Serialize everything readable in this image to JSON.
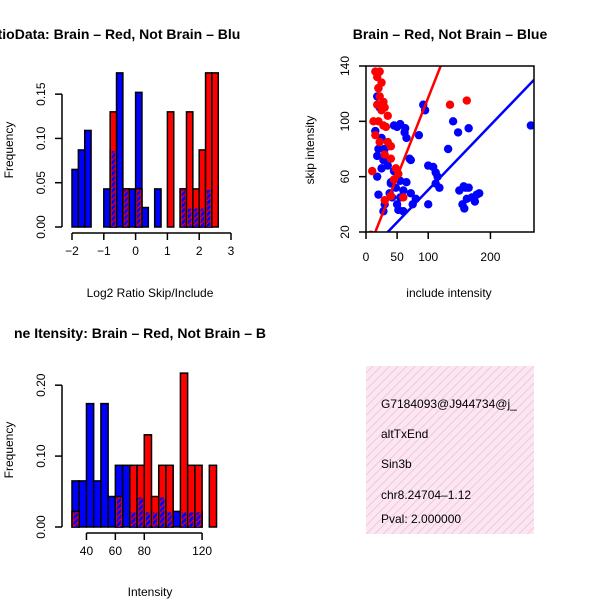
{
  "chart_data": [
    {
      "type": "bar",
      "title": "RatioData: Brain – Red, Not Brain – Blu",
      "xlabel": "Log2 Ratio Skip/Include",
      "ylabel": "Frequency",
      "xlim": [
        -2,
        3
      ],
      "ylim": [
        0,
        0.175
      ],
      "xticks": [
        "−2",
        "−1",
        "0",
        "1",
        "2",
        "3"
      ],
      "yticks": [
        "0.00",
        "0.05",
        "0.10",
        "0.15"
      ],
      "bin_width": 0.2,
      "series": [
        {
          "name": "Not Brain",
          "color": "#0000ff",
          "bins": [
            {
              "x0": -2.0,
              "v": 0.065
            },
            {
              "x0": -1.8,
              "v": 0.087
            },
            {
              "x0": -1.6,
              "v": 0.109
            },
            {
              "x0": -1.0,
              "v": 0.043
            },
            {
              "x0": -0.8,
              "v": 0.087
            },
            {
              "x0": -0.6,
              "v": 0.174
            },
            {
              "x0": -0.4,
              "v": 0.043
            },
            {
              "x0": -0.2,
              "v": 0.043
            },
            {
              "x0": 0.0,
              "v": 0.152
            },
            {
              "x0": 0.2,
              "v": 0.022
            },
            {
              "x0": 0.6,
              "v": 0.043
            },
            {
              "x0": 1.4,
              "v": 0.043
            },
            {
              "x0": 1.6,
              "v": 0.022
            },
            {
              "x0": 1.8,
              "v": 0.022
            },
            {
              "x0": 2.0,
              "v": 0.022
            },
            {
              "x0": 2.2,
              "v": 0.043
            }
          ]
        },
        {
          "name": "Brain",
          "color": "#ff0000",
          "bins": [
            {
              "x0": -0.8,
              "v": 0.13
            },
            {
              "x0": -0.4,
              "v": 0.043
            },
            {
              "x0": 0.0,
              "v": 0.043
            },
            {
              "x0": 1.0,
              "v": 0.13
            },
            {
              "x0": 1.4,
              "v": 0.043
            },
            {
              "x0": 1.6,
              "v": 0.13
            },
            {
              "x0": 1.8,
              "v": 0.043
            },
            {
              "x0": 2.0,
              "v": 0.087
            },
            {
              "x0": 2.2,
              "v": 0.174
            },
            {
              "x0": 2.4,
              "v": 0.174
            }
          ]
        }
      ]
    },
    {
      "type": "scatter",
      "title": "Brain – Red, Not Brain – Blue",
      "xlabel": "include intensity",
      "ylabel": "skip intensity",
      "xlim": [
        0,
        270
      ],
      "ylim": [
        20,
        140
      ],
      "xticks": [
        {
          "v": 0,
          "label": "0"
        },
        {
          "v": 50,
          "label": "50"
        },
        {
          "v": 100,
          "label": "100"
        },
        {
          "v": 200,
          "label": "200"
        }
      ],
      "yticks": [
        {
          "v": 20,
          "label": "20"
        },
        {
          "v": 60,
          "label": "60"
        },
        {
          "v": 100,
          "label": "100"
        },
        {
          "v": 140,
          "label": "140"
        }
      ],
      "series": [
        {
          "name": "Not Brain",
          "color": "#0000ff",
          "line": [
            [
              35,
              20
            ],
            [
              270,
              130
            ]
          ],
          "points": [
            [
              20,
              124
            ],
            [
              18,
              118
            ],
            [
              22,
              110
            ],
            [
              15,
              93
            ],
            [
              25,
              88
            ],
            [
              20,
              80
            ],
            [
              30,
              80
            ],
            [
              18,
              75
            ],
            [
              28,
              72
            ],
            [
              35,
              68
            ],
            [
              25,
              66
            ],
            [
              45,
              64
            ],
            [
              40,
              55
            ],
            [
              55,
              57
            ],
            [
              48,
              52
            ],
            [
              60,
              50
            ],
            [
              65,
              56
            ],
            [
              38,
              48
            ],
            [
              42,
              45
            ],
            [
              55,
              45
            ],
            [
              72,
              48
            ],
            [
              80,
              44
            ],
            [
              18,
              60
            ],
            [
              20,
              47
            ],
            [
              30,
              40
            ],
            [
              50,
              40
            ],
            [
              52,
              36
            ],
            [
              60,
              35
            ],
            [
              28,
              35
            ],
            [
              95,
              108
            ],
            [
              92,
              112
            ],
            [
              85,
              90
            ],
            [
              100,
              68
            ],
            [
              108,
              67
            ],
            [
              112,
              63
            ],
            [
              115,
              60
            ],
            [
              112,
              55
            ],
            [
              118,
              52
            ],
            [
              132,
              80
            ],
            [
              140,
              100
            ],
            [
              148,
              92
            ],
            [
              165,
              95
            ],
            [
              150,
              50
            ],
            [
              157,
              53
            ],
            [
              160,
              52
            ],
            [
              165,
              52
            ],
            [
              170,
              45
            ],
            [
              162,
              44
            ],
            [
              155,
              40
            ],
            [
              158,
              37
            ],
            [
              175,
              42
            ],
            [
              178,
              47
            ],
            [
              182,
              48
            ],
            [
              100,
              40
            ],
            [
              75,
              40
            ],
            [
              62,
              92
            ],
            [
              55,
              98
            ],
            [
              63,
              95
            ],
            [
              40,
              56
            ],
            [
              265,
              97
            ],
            [
              45,
              97
            ],
            [
              50,
              96
            ],
            [
              65,
              88
            ],
            [
              70,
              73
            ],
            [
              72,
              72
            ]
          ]
        },
        {
          "name": "Brain",
          "color": "#ff0000",
          "line": [
            [
              15,
              20
            ],
            [
              120,
              140
            ]
          ],
          "points": [
            [
              15,
              136
            ],
            [
              18,
              132
            ],
            [
              22,
              136
            ],
            [
              20,
              124
            ],
            [
              25,
              128
            ],
            [
              22,
              118
            ],
            [
              28,
              114
            ],
            [
              18,
              112
            ],
            [
              30,
              110
            ],
            [
              25,
              108
            ],
            [
              35,
              104
            ],
            [
              12,
              100
            ],
            [
              20,
              100
            ],
            [
              28,
              97
            ],
            [
              32,
              96
            ],
            [
              15,
              90
            ],
            [
              22,
              85
            ],
            [
              35,
              85
            ],
            [
              40,
              82
            ],
            [
              30,
              76
            ],
            [
              40,
              73
            ],
            [
              48,
              66
            ],
            [
              52,
              62
            ],
            [
              45,
              58
            ],
            [
              10,
              64
            ],
            [
              8,
              18
            ],
            [
              30,
              43
            ],
            [
              40,
              46
            ],
            [
              60,
              45
            ],
            [
              135,
              112
            ],
            [
              162,
              115
            ]
          ]
        }
      ]
    },
    {
      "type": "bar",
      "title": "ne Itensity: Brain – Red, Not Brain – B",
      "xlabel": "Intensity",
      "ylabel": "Frequency",
      "xlim": [
        30,
        140
      ],
      "ylim": [
        0,
        0.22
      ],
      "xticks": [
        {
          "v": 40,
          "label": "40"
        },
        {
          "v": 60,
          "label": "60"
        },
        {
          "v": 80,
          "label": "80"
        },
        {
          "v": 120,
          "label": "120"
        }
      ],
      "yticks": [
        "0.00",
        "0.10",
        "0.20"
      ],
      "bin_width": 5,
      "series": [
        {
          "name": "Not Brain",
          "color": "#0000ff",
          "bins": [
            {
              "x0": 30,
              "v": 0.065
            },
            {
              "x0": 35,
              "v": 0.065
            },
            {
              "x0": 40,
              "v": 0.174
            },
            {
              "x0": 45,
              "v": 0.065
            },
            {
              "x0": 50,
              "v": 0.174
            },
            {
              "x0": 55,
              "v": 0.043
            },
            {
              "x0": 60,
              "v": 0.087
            },
            {
              "x0": 65,
              "v": 0.087
            },
            {
              "x0": 70,
              "v": 0.022
            },
            {
              "x0": 75,
              "v": 0.043
            },
            {
              "x0": 80,
              "v": 0.022
            },
            {
              "x0": 85,
              "v": 0.022
            },
            {
              "x0": 90,
              "v": 0.043
            },
            {
              "x0": 95,
              "v": 0.022
            },
            {
              "x0": 100,
              "v": 0.022
            },
            {
              "x0": 105,
              "v": 0.022
            },
            {
              "x0": 110,
              "v": 0.022
            },
            {
              "x0": 115,
              "v": 0.022
            }
          ]
        },
        {
          "name": "Brain",
          "color": "#ff0000",
          "bins": [
            {
              "x0": 30,
              "v": 0.022
            },
            {
              "x0": 60,
              "v": 0.043
            },
            {
              "x0": 70,
              "v": 0.087
            },
            {
              "x0": 75,
              "v": 0.087
            },
            {
              "x0": 80,
              "v": 0.13
            },
            {
              "x0": 85,
              "v": 0.043
            },
            {
              "x0": 90,
              "v": 0.087
            },
            {
              "x0": 95,
              "v": 0.087
            },
            {
              "x0": 105,
              "v": 0.217
            },
            {
              "x0": 110,
              "v": 0.087
            },
            {
              "x0": 115,
              "v": 0.087
            },
            {
              "x0": 125,
              "v": 0.087
            }
          ]
        }
      ]
    }
  ],
  "info_panel": {
    "id": "G7184093@J944734@j_",
    "type": "altTxEnd",
    "gene": "Sin3b",
    "location": "chr8.24704–1.12",
    "pval": "Pval: 2.000000",
    "pval_color": "#8b0000",
    "background_color": "#f8dcec"
  }
}
